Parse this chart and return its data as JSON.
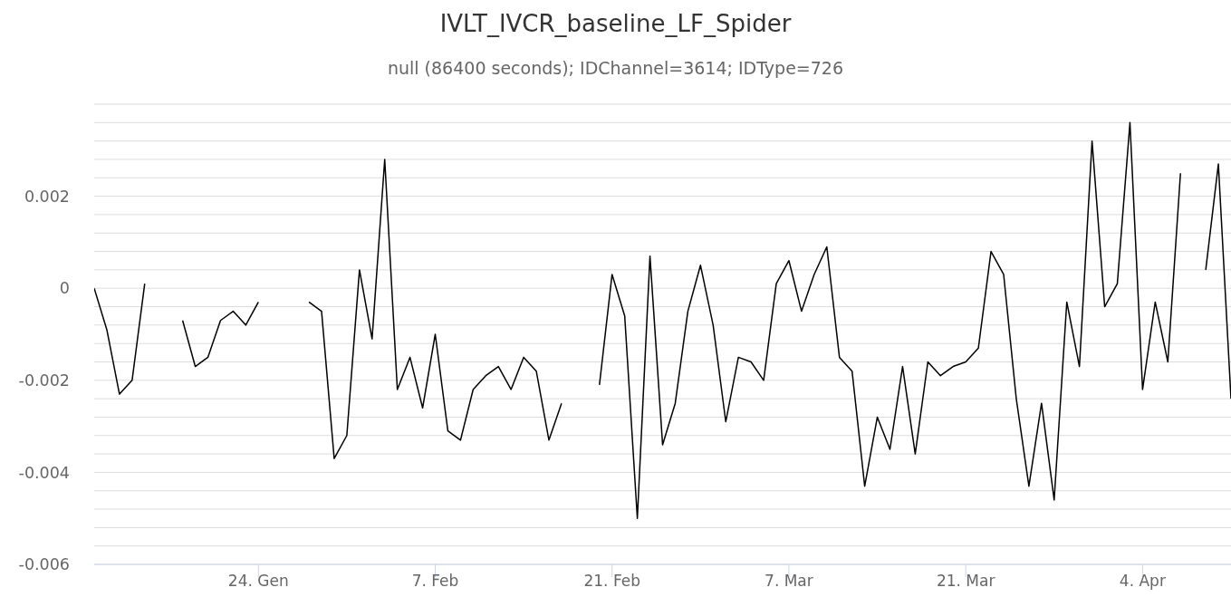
{
  "chart_data": {
    "type": "line",
    "title": "IVLT_IVCR_baseline_LF_Spider",
    "subtitle": "null (86400 seconds); IDChannel=3614; IDType=726",
    "x": [
      "--01-11",
      "--01-12",
      "--01-13",
      "--01-14",
      "--01-15",
      "--01-16",
      "--01-17",
      "--01-18",
      "--01-19",
      "--01-20",
      "--01-21",
      "--01-22",
      "--01-23",
      "--01-24",
      "--01-25",
      "--01-26",
      "--01-27",
      "--01-28",
      "--01-29",
      "--01-30",
      "--01-31",
      "--02-01",
      "--02-02",
      "--02-03",
      "--02-04",
      "--02-05",
      "--02-06",
      "--02-07",
      "--02-08",
      "--02-09",
      "--02-10",
      "--02-11",
      "--02-12",
      "--02-13",
      "--02-14",
      "--02-15",
      "--02-16",
      "--02-17",
      "--02-18",
      "--02-19",
      "--02-20",
      "--02-21",
      "--02-22",
      "--02-23",
      "--02-24",
      "--02-25",
      "--02-26",
      "--02-27",
      "--02-28",
      "--03-01",
      "--03-02",
      "--03-03",
      "--03-04",
      "--03-05",
      "--03-06",
      "--03-07",
      "--03-08",
      "--03-09",
      "--03-10",
      "--03-11",
      "--03-12",
      "--03-13",
      "--03-14",
      "--03-15",
      "--03-16",
      "--03-17",
      "--03-18",
      "--03-19",
      "--03-20",
      "--03-21",
      "--03-22",
      "--03-23",
      "--03-24",
      "--03-25",
      "--03-26",
      "--03-27",
      "--03-28",
      "--03-29",
      "--03-30",
      "--03-31",
      "--04-01",
      "--04-02",
      "--04-03",
      "--04-04",
      "--04-05",
      "--04-06",
      "--04-07",
      "--04-08",
      "--04-09",
      "--04-10",
      "--04-11"
    ],
    "values": [
      0,
      -0.0009,
      -0.0023,
      -0.002,
      0.0001,
      null,
      null,
      -0.0007,
      -0.0017,
      -0.0015,
      -0.0007,
      -0.0005,
      -0.0008,
      -0.0003,
      null,
      null,
      null,
      -0.0003,
      -0.0005,
      -0.0037,
      -0.0032,
      0.0004,
      -0.0011,
      0.0028,
      -0.0022,
      -0.0015,
      -0.0026,
      -0.001,
      -0.0031,
      -0.0033,
      -0.0022,
      -0.0019,
      -0.0017,
      -0.0022,
      -0.0015,
      -0.0018,
      -0.0033,
      -0.0025,
      null,
      null,
      -0.0021,
      0.0003,
      -0.0006,
      -0.005,
      0.0007,
      -0.0034,
      -0.0025,
      -0.0005,
      0.0005,
      -0.0008,
      -0.0029,
      -0.0015,
      -0.0016,
      -0.002,
      0.0001,
      0.0006,
      -0.0005,
      0.0003,
      0.0009,
      -0.0015,
      -0.0018,
      -0.0043,
      -0.0028,
      -0.0035,
      -0.0017,
      -0.0036,
      -0.0016,
      -0.0019,
      -0.0017,
      -0.0016,
      -0.0013,
      0.0008,
      0.0003,
      -0.0024,
      -0.0043,
      -0.0025,
      -0.0046,
      -0.0003,
      -0.0017,
      0.0032,
      -0.0004,
      0.0001,
      0.0036,
      -0.0022,
      -0.0003,
      -0.0016,
      0.0025,
      null,
      0.0004,
      0.0027,
      -0.0024
    ],
    "color": "#000000",
    "marker": "none",
    "grid": "y",
    "xlim": [
      "--01-11",
      "--04-11"
    ],
    "xticks": [
      {
        "value": "--01-24",
        "label": "24. Gen"
      },
      {
        "value": "--02-07",
        "label": "7. Feb"
      },
      {
        "value": "--02-21",
        "label": "21. Feb"
      },
      {
        "value": "--03-07",
        "label": "7. Mar"
      },
      {
        "value": "--03-21",
        "label": "21. Mar"
      },
      {
        "value": "--04-04",
        "label": "4. Apr"
      }
    ],
    "ylim": [
      -0.006,
      0.004
    ],
    "yticks": [
      -0.006,
      {
        "value": -0.0056,
        "label": null
      },
      {
        "value": -0.0052,
        "label": null
      },
      {
        "value": -0.0048,
        "label": null
      },
      {
        "value": -0.0044,
        "label": null
      },
      -0.004,
      {
        "value": -0.0036,
        "label": null
      },
      {
        "value": -0.0032,
        "label": null
      },
      {
        "value": -0.0028,
        "label": null
      },
      {
        "value": -0.0024,
        "label": null
      },
      -0.002,
      {
        "value": -0.0016,
        "label": null
      },
      {
        "value": -0.0012,
        "label": null
      },
      {
        "value": -0.0008,
        "label": null
      },
      {
        "value": -0.0004,
        "label": null
      },
      0,
      {
        "value": 0.0004,
        "label": null
      },
      {
        "value": 0.0008,
        "label": null
      },
      {
        "value": 0.0012,
        "label": null
      },
      {
        "value": 0.0016,
        "label": null
      },
      0.002,
      {
        "value": 0.0024,
        "label": null
      },
      {
        "value": 0.0028,
        "label": null
      },
      {
        "value": 0.0032,
        "label": null
      },
      {
        "value": 0.0036,
        "label": null
      },
      {
        "value": 0.004,
        "label": null
      }
    ]
  }
}
